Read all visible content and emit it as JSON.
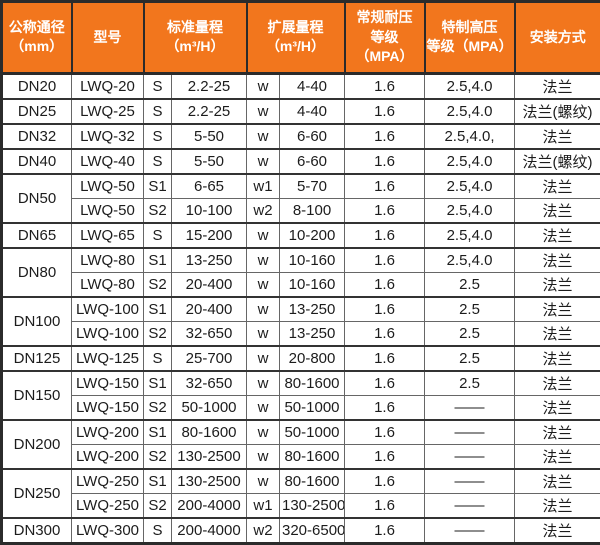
{
  "colors": {
    "header_bg": "#f2761d",
    "header_text": "#ffffff",
    "body_text": "#1c1c1c",
    "grid_heavy": "#2b2b2b",
    "grid_light": "#666666"
  },
  "table": {
    "header": [
      {
        "lines": [
          "公称通径",
          "（mm）"
        ],
        "colspan": 1
      },
      {
        "lines": [
          "型号"
        ],
        "colspan": 1
      },
      {
        "lines": [
          "标准量程",
          "（m³/H）"
        ],
        "colspan": 2
      },
      {
        "lines": [
          "扩展量程",
          "（m³/H）"
        ],
        "colspan": 2
      },
      {
        "lines": [
          "常规耐压",
          "等级（MPA）"
        ],
        "colspan": 1
      },
      {
        "lines": [
          "特制高压",
          "等级（MPA）"
        ],
        "colspan": 1
      },
      {
        "lines": [
          "安装方式"
        ],
        "colspan": 1
      }
    ],
    "rows": [
      {
        "dn": "DN20",
        "dn_span": 1,
        "model": "LWQ-20",
        "s": "S",
        "std": "2.2-25",
        "w": "w",
        "ext": "4-40",
        "pn": "1.6",
        "hp": "2.5,4.0",
        "mount": "法兰"
      },
      {
        "dn": "DN25",
        "dn_span": 1,
        "model": "LWQ-25",
        "s": "S",
        "std": "2.2-25",
        "w": "w",
        "ext": "4-40",
        "pn": "1.6",
        "hp": "2.5,4.0",
        "mount": "法兰(螺纹)"
      },
      {
        "dn": "DN32",
        "dn_span": 1,
        "model": "LWQ-32",
        "s": "S",
        "std": "5-50",
        "w": "w",
        "ext": "6-60",
        "pn": "1.6",
        "hp": "2.5,4.0,",
        "mount": "法兰"
      },
      {
        "dn": "DN40",
        "dn_span": 1,
        "model": "LWQ-40",
        "s": "S",
        "std": "5-50",
        "w": "w",
        "ext": "6-60",
        "pn": "1.6",
        "hp": "2.5,4.0",
        "mount": "法兰(螺纹)"
      },
      {
        "dn": "DN50",
        "dn_span": 2,
        "model": "LWQ-50",
        "s": "S1",
        "std": "6-65",
        "w": "w1",
        "ext": "5-70",
        "pn": "1.6",
        "hp": "2.5,4.0",
        "mount": "法兰"
      },
      {
        "model": "LWQ-50",
        "s": "S2",
        "std": "10-100",
        "w": "w2",
        "ext": "8-100",
        "pn": "1.6",
        "hp": "2.5,4.0",
        "mount": "法兰"
      },
      {
        "dn": "DN65",
        "dn_span": 1,
        "model": "LWQ-65",
        "s": "S",
        "std": "15-200",
        "w": "w",
        "ext": "10-200",
        "pn": "1.6",
        "hp": "2.5,4.0",
        "mount": "法兰"
      },
      {
        "dn": "DN80",
        "dn_span": 2,
        "model": "LWQ-80",
        "s": "S1",
        "std": "13-250",
        "w": "w",
        "ext": "10-160",
        "pn": "1.6",
        "hp": "2.5,4.0",
        "mount": "法兰"
      },
      {
        "model": "LWQ-80",
        "s": "S2",
        "std": "20-400",
        "w": "w",
        "ext": "10-160",
        "pn": "1.6",
        "hp": "2.5",
        "mount": "法兰"
      },
      {
        "dn": "DN100",
        "dn_span": 2,
        "model": "LWQ-100",
        "s": "S1",
        "std": "20-400",
        "w": "w",
        "ext": "13-250",
        "pn": "1.6",
        "hp": "2.5",
        "mount": "法兰"
      },
      {
        "model": "LWQ-100",
        "s": "S2",
        "std": "32-650",
        "w": "w",
        "ext": "13-250",
        "pn": "1.6",
        "hp": "2.5",
        "mount": "法兰"
      },
      {
        "dn": "DN125",
        "dn_span": 1,
        "model": "LWQ-125",
        "s": "S",
        "std": "25-700",
        "w": "w",
        "ext": "20-800",
        "pn": "1.6",
        "hp": "2.5",
        "mount": "法兰"
      },
      {
        "dn": "DN150",
        "dn_span": 2,
        "model": "LWQ-150",
        "s": "S1",
        "std": "32-650",
        "w": "w",
        "ext": "80-1600",
        "pn": "1.6",
        "hp": "2.5",
        "mount": "法兰"
      },
      {
        "model": "LWQ-150",
        "s": "S2",
        "std": "50-1000",
        "w": "w",
        "ext": "50-1000",
        "pn": "1.6",
        "hp": "——",
        "mount": "法兰"
      },
      {
        "dn": "DN200",
        "dn_span": 2,
        "model": "LWQ-200",
        "s": "S1",
        "std": "80-1600",
        "w": "w",
        "ext": "50-1000",
        "pn": "1.6",
        "hp": "——",
        "mount": "法兰"
      },
      {
        "model": "LWQ-200",
        "s": "S2",
        "std": "130-2500",
        "w": "w",
        "ext": "80-1600",
        "pn": "1.6",
        "hp": "——",
        "mount": "法兰"
      },
      {
        "dn": "DN250",
        "dn_span": 2,
        "model": "LWQ-250",
        "s": "S1",
        "std": "130-2500",
        "w": "w",
        "ext": "80-1600",
        "pn": "1.6",
        "hp": "——",
        "mount": "法兰"
      },
      {
        "model": "LWQ-250",
        "s": "S2",
        "std": "200-4000",
        "w": "w1",
        "ext": "130-2500",
        "pn": "1.6",
        "hp": "——",
        "mount": "法兰"
      },
      {
        "dn": "DN300",
        "dn_span": 1,
        "model": "LWQ-300",
        "s": "S",
        "std": "200-4000",
        "w": "w2",
        "ext": "320-6500",
        "pn": "1.6",
        "hp": "——",
        "mount": "法兰"
      }
    ]
  }
}
